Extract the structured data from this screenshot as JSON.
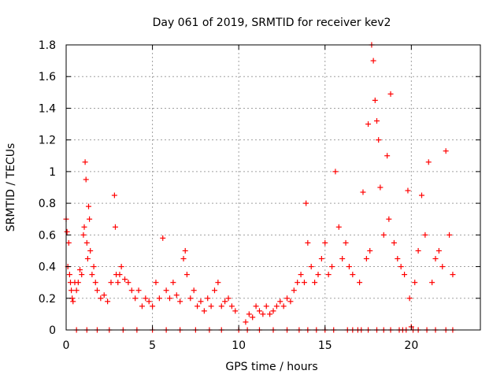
{
  "chart_data": {
    "type": "scatter",
    "title": "Day 061 of 2019, SRMTID for receiver kev2",
    "xlabel": "GPS time / hours",
    "ylabel": "SRMTID / TECUs",
    "xlim": [
      0,
      24
    ],
    "ylim": [
      0,
      1.8
    ],
    "xticks": [
      0,
      5,
      10,
      15,
      20
    ],
    "xtick_labels": [
      "0",
      "5",
      "10",
      "15",
      "20"
    ],
    "yticks": [
      0,
      0.2,
      0.4,
      0.6,
      0.8,
      1.0,
      1.2,
      1.4,
      1.6,
      1.8
    ],
    "ytick_labels": [
      "0",
      "0.2",
      "0.4",
      "0.6",
      "0.8",
      "1",
      "1.2",
      "1.4",
      "1.6",
      "1.8"
    ],
    "grid": true,
    "marker": "+",
    "color": "#ff0000",
    "series": [
      {
        "name": "SRMTID",
        "x": [
          0.0,
          0.05,
          0.1,
          0.15,
          0.2,
          0.25,
          0.3,
          0.35,
          0.4,
          0.5,
          0.6,
          0.7,
          0.8,
          0.9,
          1.0,
          1.05,
          1.1,
          1.15,
          1.2,
          1.25,
          1.3,
          1.35,
          1.4,
          1.5,
          1.6,
          1.7,
          1.8,
          2.0,
          2.2,
          2.4,
          2.6,
          2.8,
          2.85,
          2.9,
          3.0,
          3.1,
          3.2,
          3.4,
          3.6,
          3.8,
          4.0,
          4.2,
          4.4,
          4.6,
          4.8,
          5.0,
          5.2,
          5.4,
          5.6,
          5.8,
          6.0,
          6.2,
          6.4,
          6.6,
          6.8,
          6.9,
          7.0,
          7.2,
          7.4,
          7.6,
          7.8,
          8.0,
          8.2,
          8.4,
          8.6,
          8.8,
          9.0,
          9.2,
          9.4,
          9.6,
          9.8,
          10.4,
          10.6,
          10.8,
          11.0,
          11.2,
          11.4,
          11.6,
          11.8,
          12.0,
          12.2,
          12.4,
          12.6,
          12.8,
          13.0,
          13.2,
          13.4,
          13.6,
          13.8,
          13.9,
          14.0,
          14.2,
          14.4,
          14.6,
          14.8,
          15.0,
          15.2,
          15.4,
          15.6,
          15.8,
          16.0,
          16.2,
          16.4,
          16.6,
          17.0,
          17.2,
          17.4,
          17.5,
          17.6,
          17.7,
          17.8,
          17.9,
          18.0,
          18.1,
          18.2,
          18.4,
          18.6,
          18.7,
          18.8,
          19.0,
          19.2,
          19.4,
          19.6,
          19.8,
          19.9,
          20.0,
          20.2,
          20.4,
          20.6,
          20.8,
          21.0,
          21.2,
          21.4,
          21.6,
          21.8,
          22.0,
          22.2,
          22.4
        ],
        "y": [
          0.7,
          0.62,
          0.4,
          0.55,
          0.35,
          0.3,
          0.25,
          0.2,
          0.18,
          0.3,
          0.25,
          0.3,
          0.38,
          0.35,
          0.6,
          0.65,
          1.06,
          0.95,
          0.55,
          0.45,
          0.78,
          0.7,
          0.5,
          0.35,
          0.4,
          0.3,
          0.25,
          0.2,
          0.22,
          0.18,
          0.3,
          0.85,
          0.65,
          0.35,
          0.3,
          0.35,
          0.4,
          0.32,
          0.3,
          0.25,
          0.2,
          0.25,
          0.15,
          0.2,
          0.18,
          0.15,
          0.3,
          0.2,
          0.58,
          0.25,
          0.2,
          0.3,
          0.22,
          0.18,
          0.45,
          0.5,
          0.35,
          0.2,
          0.25,
          0.15,
          0.18,
          0.12,
          0.2,
          0.15,
          0.25,
          0.3,
          0.15,
          0.18,
          0.2,
          0.15,
          0.12,
          0.05,
          0.1,
          0.08,
          0.15,
          0.12,
          0.1,
          0.15,
          0.1,
          0.12,
          0.15,
          0.18,
          0.15,
          0.2,
          0.18,
          0.25,
          0.3,
          0.35,
          0.3,
          0.8,
          0.55,
          0.4,
          0.3,
          0.35,
          0.45,
          0.55,
          0.35,
          0.4,
          1.0,
          0.65,
          0.45,
          0.55,
          0.4,
          0.35,
          0.3,
          0.87,
          0.45,
          1.3,
          0.5,
          1.8,
          1.7,
          1.45,
          1.32,
          1.2,
          0.9,
          0.6,
          1.1,
          0.7,
          1.49,
          0.55,
          0.45,
          0.4,
          0.35,
          0.88,
          0.2,
          0.02,
          0.3,
          0.5,
          0.85,
          0.6,
          1.06,
          0.3,
          0.45,
          0.5,
          0.4,
          1.13,
          0.6,
          0.35
        ],
        "zero_marks_x": [
          0.6,
          1.2,
          1.8,
          2.5,
          3.3,
          4.1,
          5.0,
          5.8,
          6.6,
          7.5,
          8.3,
          9.0,
          10.0,
          10.5,
          11.2,
          12.0,
          12.8,
          13.5,
          14.0,
          14.5,
          15.0,
          15.5,
          16.3,
          16.6,
          16.9,
          17.1,
          17.5,
          18.0,
          18.4,
          18.8,
          19.3,
          19.5,
          19.7,
          20.1,
          20.4,
          20.9,
          21.4,
          22.0,
          22.4
        ]
      }
    ]
  }
}
